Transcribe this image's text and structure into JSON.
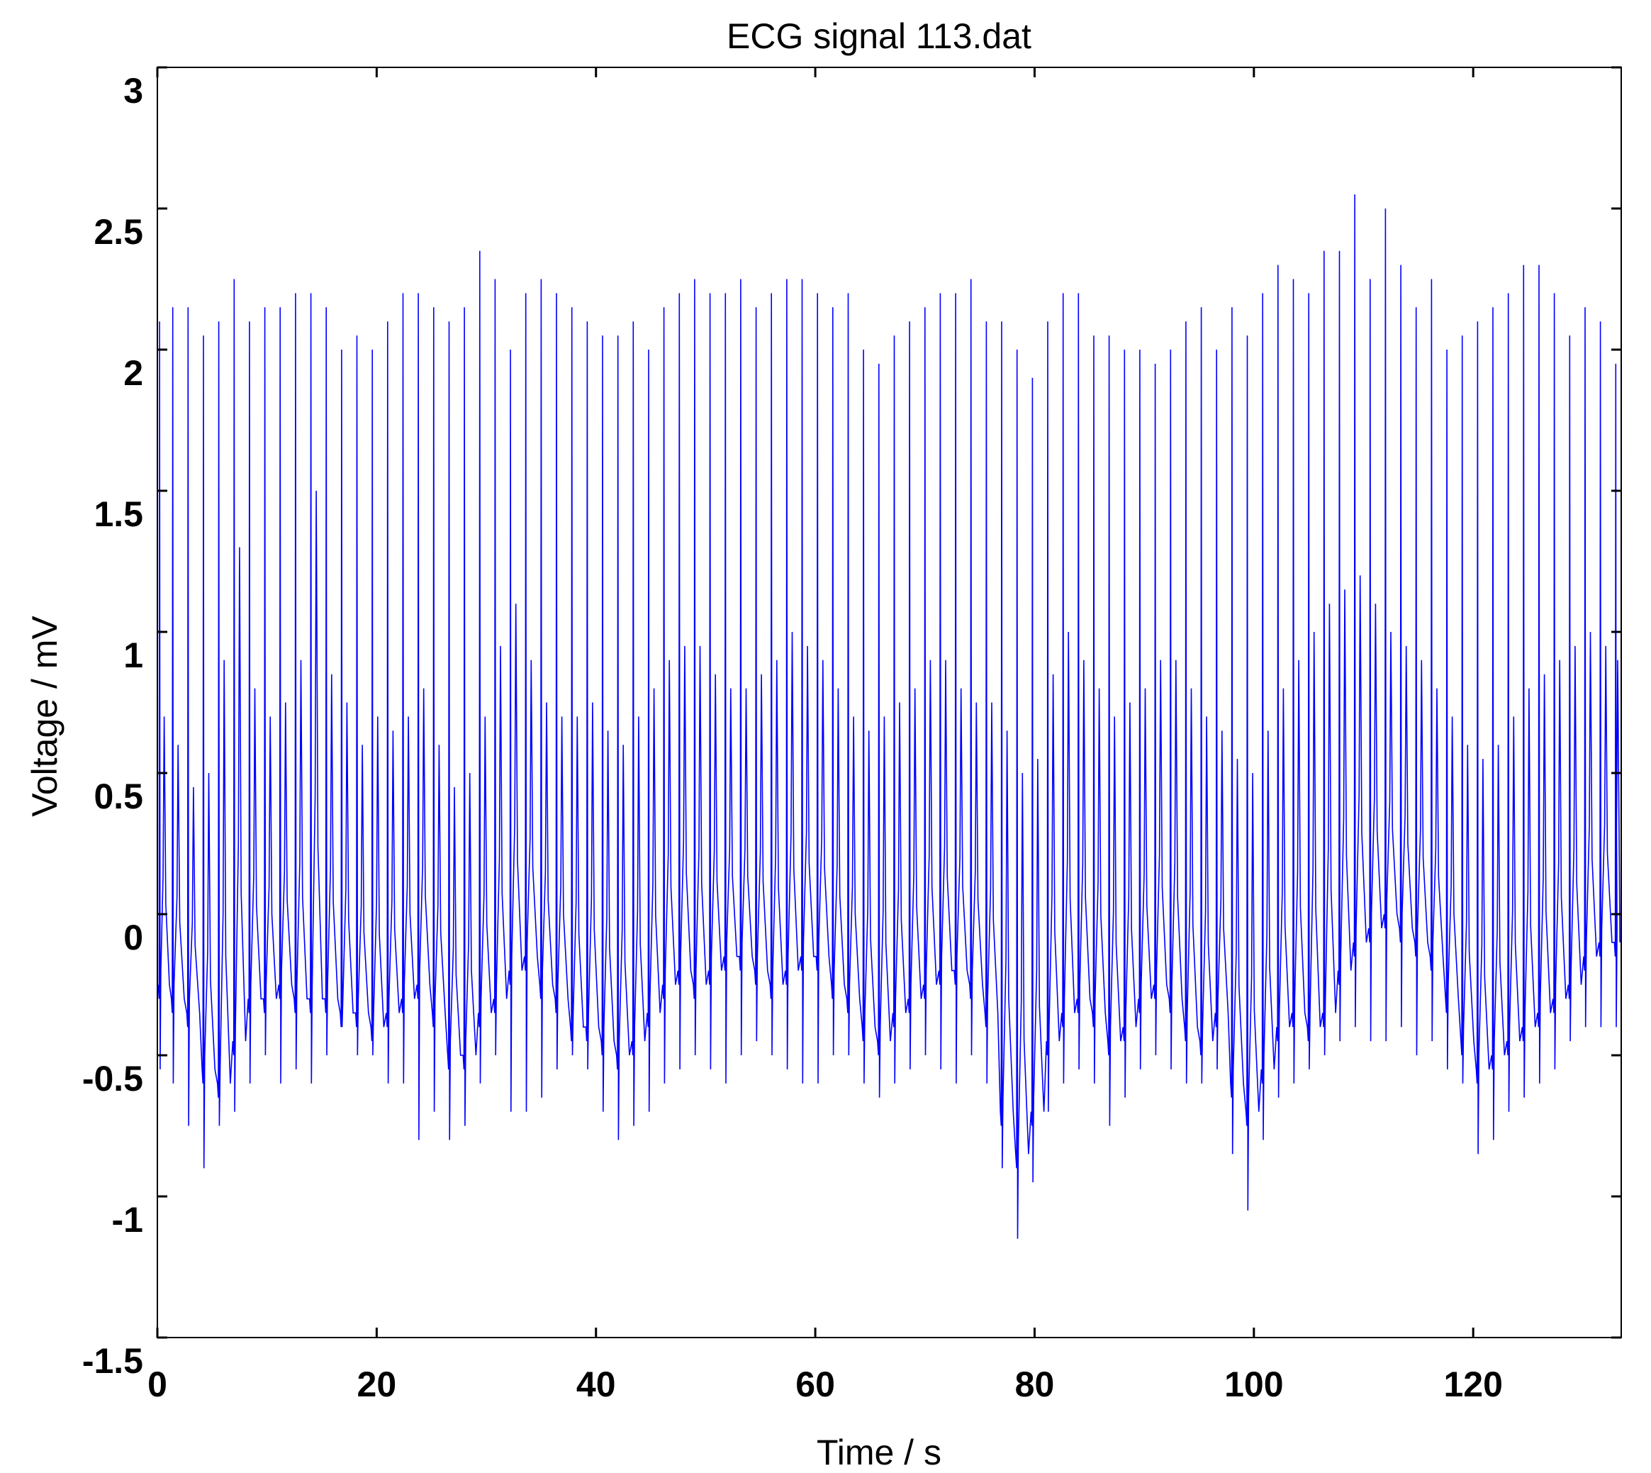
{
  "chart_data": {
    "type": "line",
    "title": "ECG signal 113.dat",
    "xlabel": "Time / s",
    "ylabel": "Voltage / mV",
    "xlim": [
      0,
      133.5
    ],
    "ylim": [
      -1.5,
      3
    ],
    "xticks": [
      "0",
      "20",
      "40",
      "60",
      "80",
      "100",
      "120"
    ],
    "xtick_values": [
      0,
      20,
      40,
      60,
      80,
      100,
      120
    ],
    "yticks": [
      "-1.5",
      "-1",
      "-0.5",
      "0",
      "0.5",
      "1",
      "1.5",
      "2",
      "2.5",
      "3"
    ],
    "ytick_values": [
      -1.5,
      -1,
      -0.5,
      0,
      0.5,
      1,
      1.5,
      2,
      2.5,
      3
    ],
    "grid": false,
    "series": [
      {
        "color": "#0000ff",
        "r_peak_times": [
          0.2,
          1.4,
          2.8,
          4.2,
          5.6,
          7.0,
          8.4,
          9.8,
          11.2,
          12.6,
          14.0,
          15.4,
          16.8,
          18.2,
          19.6,
          21.0,
          22.4,
          23.8,
          25.2,
          26.6,
          28.0,
          29.4,
          30.8,
          32.2,
          33.6,
          35.0,
          36.4,
          37.8,
          39.2,
          40.6,
          42.0,
          43.4,
          44.8,
          46.2,
          47.6,
          49.0,
          50.4,
          51.8,
          53.2,
          54.6,
          56.0,
          57.4,
          58.8,
          60.2,
          61.6,
          63.0,
          64.4,
          65.8,
          67.2,
          68.6,
          70.0,
          71.4,
          72.8,
          74.2,
          75.6,
          77.0,
          78.4,
          79.8,
          81.2,
          82.6,
          84.0,
          85.4,
          86.8,
          88.2,
          89.6,
          91.0,
          92.4,
          93.8,
          95.2,
          96.6,
          98.0,
          99.4,
          100.8,
          102.2,
          103.6,
          105.0,
          106.4,
          107.8,
          109.2,
          110.6,
          112.0,
          113.4,
          114.8,
          116.2,
          117.6,
          119.0,
          120.4,
          121.8,
          123.2,
          124.6,
          126.0,
          127.4,
          128.8,
          130.2,
          131.6,
          133.0
        ],
        "r_peak_values": [
          2.1,
          2.15,
          2.15,
          2.05,
          2.1,
          2.25,
          2.1,
          2.15,
          2.15,
          2.2,
          2.2,
          2.15,
          2.0,
          2.05,
          2.0,
          2.1,
          2.2,
          2.2,
          2.15,
          2.1,
          2.15,
          2.35,
          2.25,
          2.0,
          2.2,
          2.25,
          2.2,
          2.15,
          2.1,
          2.05,
          2.05,
          2.1,
          2.0,
          2.15,
          2.2,
          2.25,
          2.2,
          2.2,
          2.25,
          2.15,
          2.2,
          2.25,
          2.25,
          2.2,
          2.15,
          2.2,
          2.0,
          1.95,
          2.05,
          2.1,
          2.15,
          2.2,
          2.2,
          2.25,
          2.1,
          2.1,
          2.0,
          1.9,
          2.1,
          2.2,
          2.2,
          2.05,
          2.05,
          2.0,
          2.0,
          1.95,
          2.0,
          2.1,
          2.15,
          2.0,
          2.15,
          2.05,
          2.2,
          2.3,
          2.25,
          2.2,
          2.35,
          2.35,
          2.55,
          2.25,
          2.5,
          2.3,
          2.15,
          2.25,
          2.0,
          2.05,
          2.1,
          2.15,
          2.2,
          2.3,
          2.3,
          2.2,
          2.05,
          2.15,
          2.1,
          1.95
        ],
        "s_trough_values": [
          -0.55,
          -0.6,
          -0.75,
          -0.9,
          -0.75,
          -0.7,
          -0.6,
          -0.5,
          -0.6,
          -0.55,
          -0.6,
          -0.5,
          -0.4,
          -0.5,
          -0.5,
          -0.6,
          -0.6,
          -0.8,
          -0.7,
          -0.8,
          -0.75,
          -0.6,
          -0.5,
          -0.7,
          -0.7,
          -0.65,
          -0.55,
          -0.5,
          -0.55,
          -0.7,
          -0.8,
          -0.75,
          -0.7,
          -0.6,
          -0.55,
          -0.5,
          -0.55,
          -0.6,
          -0.5,
          -0.45,
          -0.5,
          -0.55,
          -0.6,
          -0.6,
          -0.5,
          -0.5,
          -0.6,
          -0.65,
          -0.6,
          -0.55,
          -0.5,
          -0.55,
          -0.6,
          -0.5,
          -0.6,
          -0.9,
          -1.15,
          -0.95,
          -0.7,
          -0.6,
          -0.55,
          -0.6,
          -0.75,
          -0.65,
          -0.55,
          -0.5,
          -0.55,
          -0.6,
          -0.6,
          -0.55,
          -0.85,
          -1.05,
          -0.8,
          -0.65,
          -0.6,
          -0.55,
          -0.5,
          -0.45,
          -0.4,
          -0.45,
          -0.45,
          -0.4,
          -0.5,
          -0.45,
          -0.55,
          -0.6,
          -0.85,
          -0.8,
          -0.7,
          -0.65,
          -0.6,
          -0.55,
          -0.45,
          -0.4,
          -0.4,
          -0.4
        ],
        "baseline_values": [
          -0.25,
          -0.3,
          -0.35,
          -0.55,
          -0.6,
          -0.45,
          -0.3,
          -0.3,
          -0.25,
          -0.3,
          -0.3,
          -0.3,
          -0.35,
          -0.35,
          -0.4,
          -0.35,
          -0.3,
          -0.25,
          -0.35,
          -0.5,
          -0.5,
          -0.35,
          -0.3,
          -0.2,
          -0.15,
          -0.25,
          -0.3,
          -0.4,
          -0.4,
          -0.45,
          -0.5,
          -0.45,
          -0.35,
          -0.25,
          -0.2,
          -0.25,
          -0.2,
          -0.15,
          -0.15,
          -0.2,
          -0.25,
          -0.2,
          -0.15,
          -0.15,
          -0.25,
          -0.3,
          -0.4,
          -0.45,
          -0.35,
          -0.3,
          -0.25,
          -0.2,
          -0.2,
          -0.25,
          -0.35,
          -0.7,
          -0.85,
          -0.7,
          -0.45,
          -0.35,
          -0.3,
          -0.35,
          -0.45,
          -0.4,
          -0.3,
          -0.25,
          -0.3,
          -0.4,
          -0.45,
          -0.35,
          -0.6,
          -0.7,
          -0.55,
          -0.4,
          -0.35,
          -0.4,
          -0.35,
          -0.2,
          -0.1,
          -0.05,
          0.0,
          -0.05,
          -0.1,
          -0.15,
          -0.3,
          -0.45,
          -0.55,
          -0.5,
          -0.45,
          -0.4,
          -0.35,
          -0.3,
          -0.25,
          -0.15,
          -0.1,
          -0.1
        ],
        "t_wave_values": [
          0.7,
          0.6,
          0.45,
          0.5,
          0.9,
          1.3,
          0.8,
          0.7,
          0.75,
          0.9,
          1.5,
          0.85,
          0.75,
          0.6,
          0.7,
          0.65,
          0.7,
          0.8,
          0.6,
          0.45,
          0.5,
          0.7,
          0.95,
          1.1,
          0.9,
          0.75,
          0.7,
          0.7,
          0.75,
          0.65,
          0.6,
          0.7,
          0.8,
          0.9,
          0.95,
          0.95,
          0.85,
          0.8,
          0.8,
          0.85,
          0.9,
          1.0,
          0.95,
          0.9,
          0.8,
          0.7,
          0.65,
          0.7,
          0.75,
          0.8,
          0.9,
          0.9,
          0.8,
          0.75,
          0.75,
          0.65,
          0.5,
          0.55,
          0.85,
          1.0,
          0.9,
          0.8,
          0.7,
          0.75,
          0.8,
          0.9,
          0.9,
          0.8,
          0.7,
          0.65,
          0.55,
          0.5,
          0.65,
          0.8,
          0.9,
          1.0,
          1.1,
          1.15,
          1.2,
          1.1,
          1.0,
          0.95,
          0.9,
          0.8,
          0.7,
          0.6,
          0.55,
          0.6,
          0.7,
          0.8,
          0.85,
          0.9,
          0.95,
          1.0,
          0.95,
          0.9
        ]
      }
    ]
  }
}
